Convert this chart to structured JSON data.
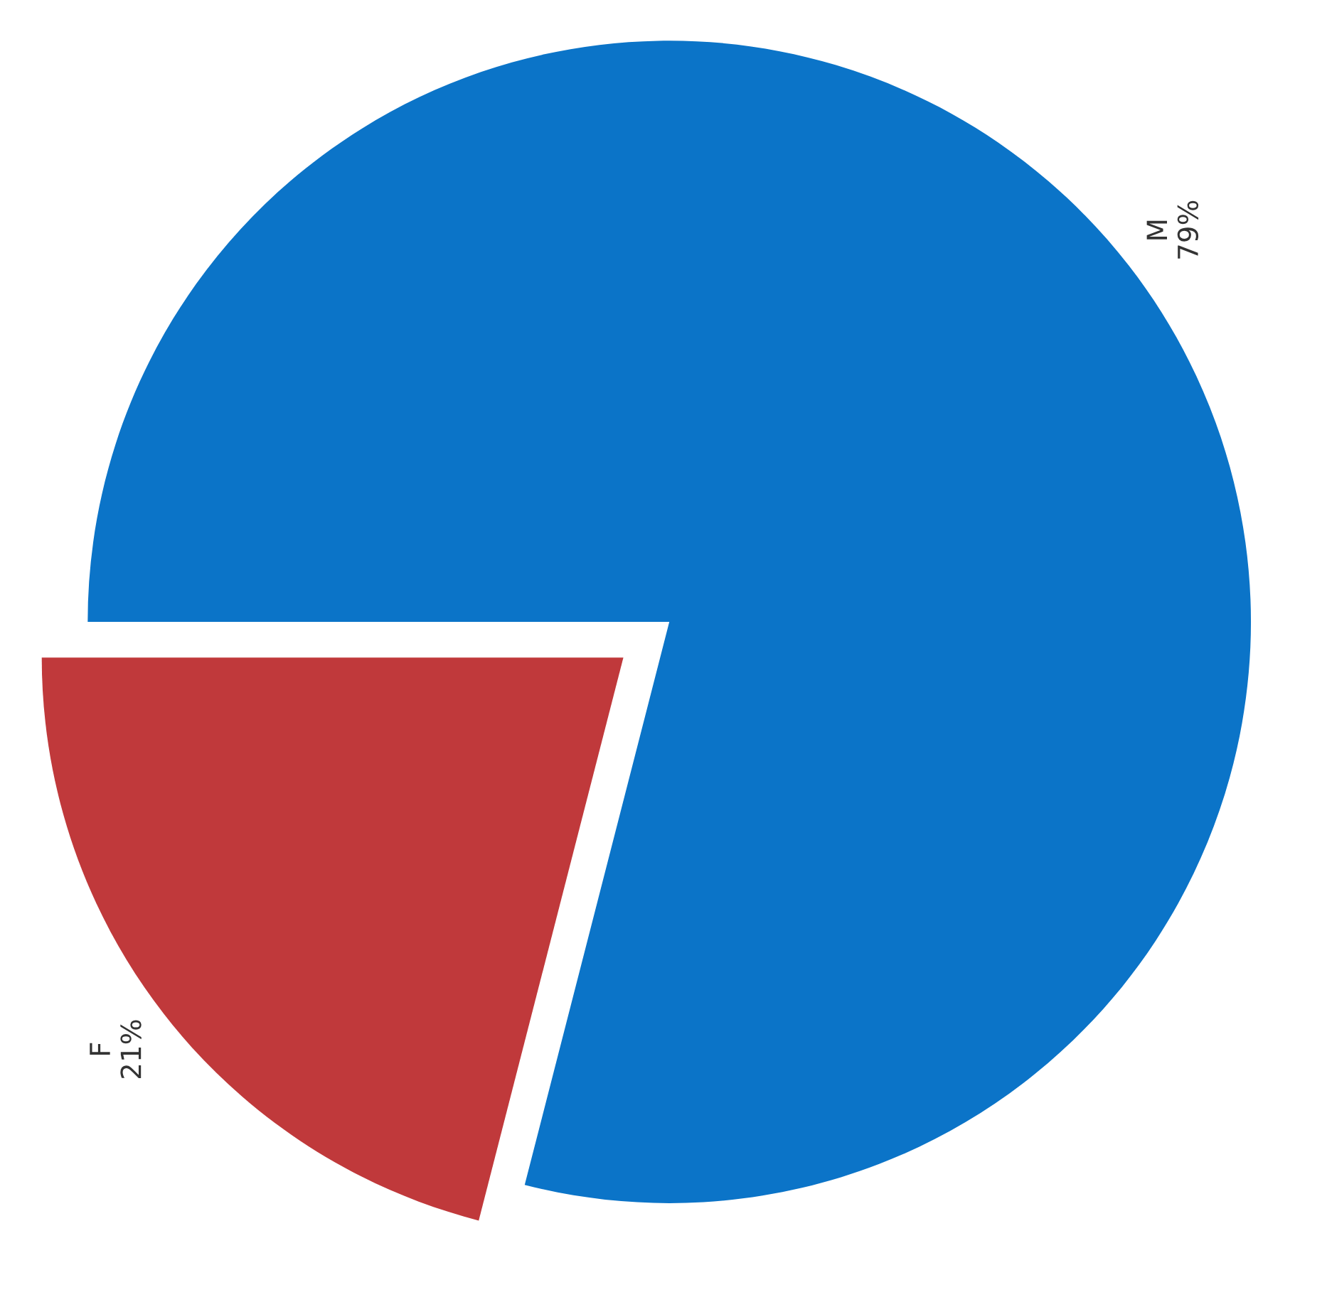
{
  "chart_data": {
    "type": "pie",
    "categories": [
      "M",
      "F"
    ],
    "values": [
      79,
      21
    ],
    "colors": [
      "#0b74c8",
      "#c0393b"
    ],
    "value_labels": [
      "79%",
      "21%"
    ]
  }
}
